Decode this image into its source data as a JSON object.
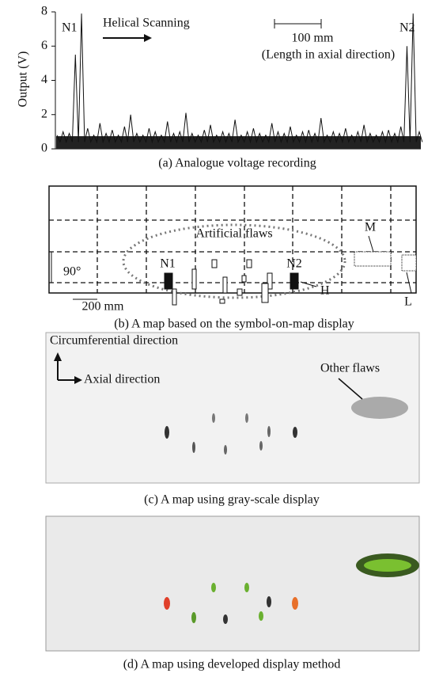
{
  "chart_data": {
    "type": "line",
    "ylabel": "Output (V)",
    "caption": "(a) Analogue voltage recording",
    "annotations": [
      "N1",
      "N2",
      "Helical Scanning",
      "100 mm",
      "(Length in axial direction)"
    ],
    "categories": [
      null,
      null,
      null,
      null,
      null,
      null,
      null,
      null,
      null,
      null,
      null,
      null,
      null,
      null,
      null,
      null,
      null,
      null,
      null,
      null,
      null,
      null,
      null,
      null,
      null,
      null,
      null,
      null,
      null,
      null,
      null,
      null,
      null,
      null,
      null,
      null,
      null,
      null,
      null,
      null,
      null,
      null,
      null,
      null,
      null,
      null,
      null,
      null,
      null,
      null,
      null,
      null,
      null,
      null,
      null,
      null,
      null,
      null,
      null,
      null
    ],
    "values": [
      0.8,
      1.0,
      0.9,
      5.5,
      7.9,
      1.2,
      0.8,
      1.5,
      0.9,
      1.1,
      0.8,
      1.3,
      2.0,
      0.9,
      0.8,
      1.2,
      1.0,
      0.8,
      1.6,
      0.9,
      1.0,
      2.1,
      0.9,
      0.8,
      1.1,
      1.4,
      0.8,
      1.0,
      0.9,
      1.7,
      0.8,
      1.0,
      1.2,
      0.9,
      0.8,
      1.5,
      1.0,
      0.9,
      1.3,
      0.8,
      1.0,
      1.1,
      0.9,
      1.8,
      0.8,
      1.0,
      0.9,
      1.2,
      0.8,
      1.0,
      1.4,
      0.9,
      0.8,
      1.0,
      1.1,
      0.9,
      1.3,
      6.0,
      7.9,
      1.0
    ],
    "color": "#111111",
    "ylim": [
      0,
      8
    ],
    "yticks": [
      0,
      2,
      4,
      6,
      8
    ]
  },
  "panels": [
    {
      "caption": "(b) A map based on the symbol-on-map display",
      "labels": [
        "Artificial flaws",
        "N1",
        "N2",
        "M",
        "H",
        "L",
        "90°",
        "200 mm"
      ]
    },
    {
      "caption": "(c) A map using gray-scale display",
      "labels": [
        "Circumferential direction",
        "Axial direction",
        "Other flaws"
      ]
    },
    {
      "caption": "(d) A map using developed display method"
    }
  ]
}
